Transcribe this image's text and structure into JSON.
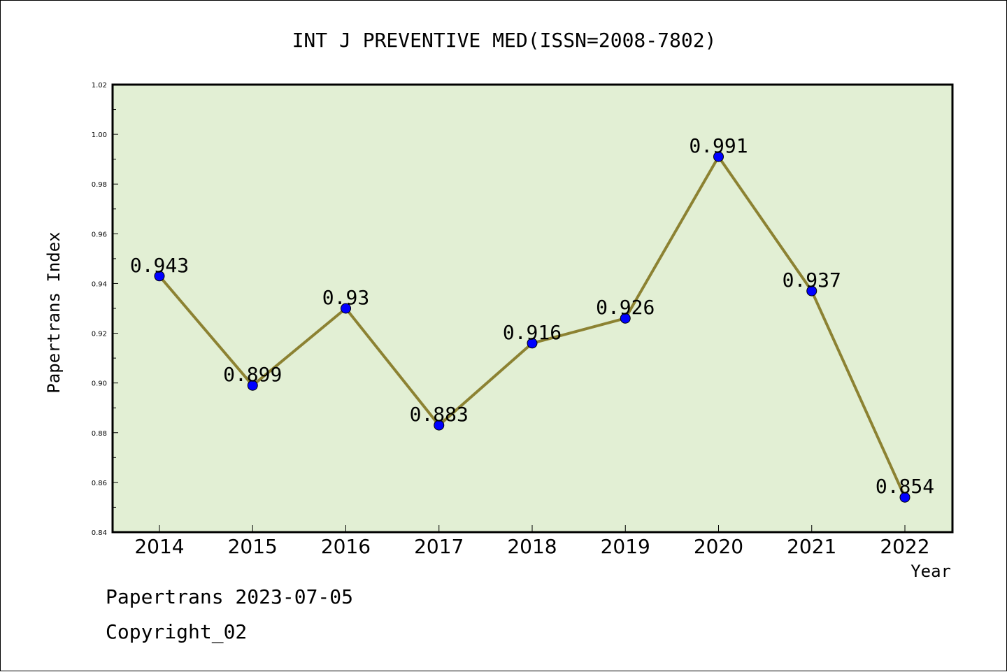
{
  "chart_data": {
    "type": "line",
    "title": "INT J PREVENTIVE MED(ISSN=2008-7802)",
    "xlabel": "Year",
    "ylabel": "Papertrans Index",
    "categories": [
      "2014",
      "2015",
      "2016",
      "2017",
      "2018",
      "2019",
      "2020",
      "2021",
      "2022"
    ],
    "series": [
      {
        "values": [
          0.943,
          0.899,
          0.93,
          0.883,
          0.916,
          0.926,
          0.991,
          0.937,
          0.854
        ]
      }
    ],
    "data_labels": [
      "0.943",
      "0.899",
      "0.93",
      "0.883",
      "0.916",
      "0.926",
      "0.991",
      "0.937",
      "0.854"
    ],
    "ylim": [
      0.84,
      1.02
    ],
    "yticks": [
      "0.84",
      "0.86",
      "0.88",
      "0.90",
      "0.92",
      "0.94",
      "0.96",
      "0.98",
      "1.00",
      "1.02"
    ],
    "grid": false,
    "colors": {
      "plot_background": "#e2efd4",
      "line": "#8c8232",
      "marker": "#0000ff"
    }
  },
  "footer": {
    "date_text": "Papertrans 2023-07-05",
    "copyright_text": "Copyright_02"
  }
}
